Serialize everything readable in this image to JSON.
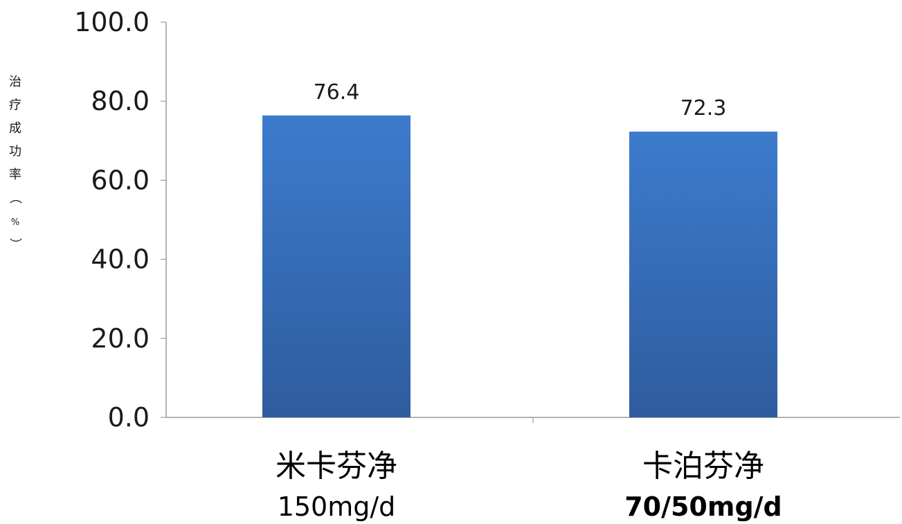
{
  "chart_data": {
    "type": "bar",
    "title": "",
    "xlabel": "",
    "ylabel": "治疗成功率（%）",
    "ylim": [
      0,
      100
    ],
    "yticks": [
      "0.0",
      "20.0",
      "40.0",
      "60.0",
      "80.0",
      "100.0"
    ],
    "categories": [
      {
        "name": "米卡芬净",
        "dose": "150mg/d"
      },
      {
        "name": "卡泊芬净",
        "dose": "70/50mg/d"
      }
    ],
    "values": [
      76.4,
      72.3
    ],
    "data_labels": [
      "76.4",
      "72.3"
    ],
    "bar_color_top": "#3d7bcd",
    "bar_color_bottom": "#2e5c9e",
    "axis_color": "#9a9a9a",
    "grid": false,
    "legend": "none"
  }
}
